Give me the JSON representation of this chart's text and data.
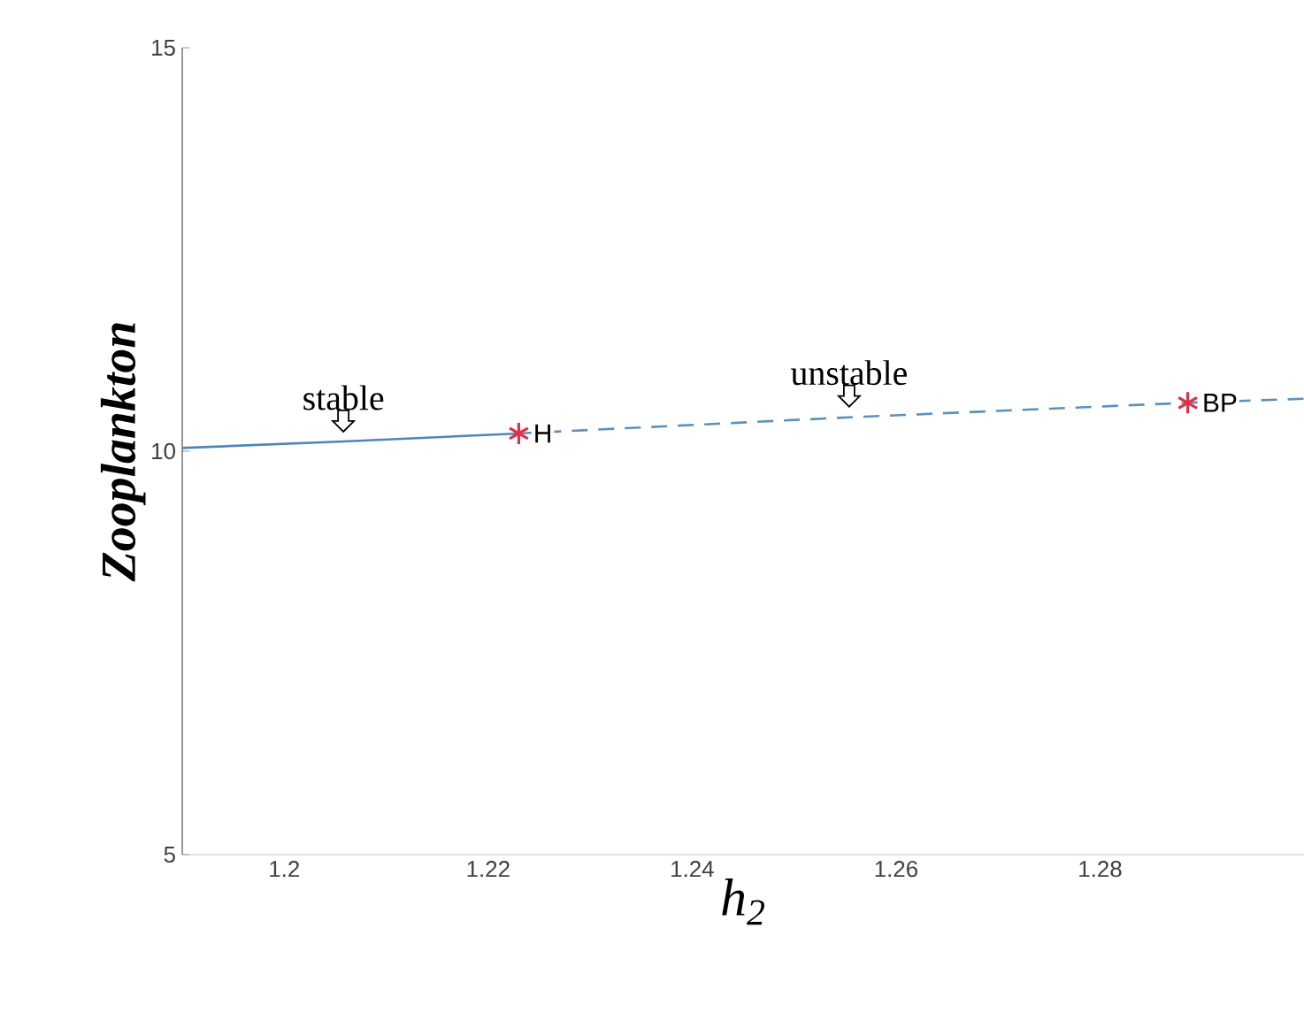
{
  "chart_data": {
    "type": "line",
    "xlabel": "h$_{2}$",
    "ylabel": "Zooplankton",
    "xlim": [
      1.19,
      1.3
    ],
    "ylim": [
      5,
      15
    ],
    "xticks": [
      1.2,
      1.22,
      1.24,
      1.26,
      1.28
    ],
    "yticks": [
      5,
      10,
      15
    ],
    "grid": false,
    "series": [
      {
        "color": "#4f86b8",
        "line_style": "solid",
        "marker": "none",
        "x": [
          1.19,
          1.2058,
          1.223
        ],
        "values": [
          10.04,
          10.12,
          10.22
        ]
      },
      {
        "color": "#5b92bb",
        "line_style": "dashed",
        "marker": "none",
        "x": [
          1.223,
          1.2554,
          1.2886,
          1.3
        ],
        "values": [
          10.22,
          10.42,
          10.6,
          10.65
        ]
      },
      {
        "type": "scatter",
        "name": "H",
        "color": "#e0304a",
        "marker": "cross",
        "x": [
          1.223
        ],
        "values": [
          10.22
        ]
      },
      {
        "type": "scatter",
        "name": "BP",
        "color": "#e0304a",
        "marker": "cross",
        "x": [
          1.2886
        ],
        "values": [
          10.6
        ]
      }
    ],
    "annotations": [
      {
        "text": "stable",
        "x": 1.2058,
        "y": 10.22
      },
      {
        "text": "unstable",
        "x": 1.2554,
        "y": 10.53
      }
    ]
  }
}
